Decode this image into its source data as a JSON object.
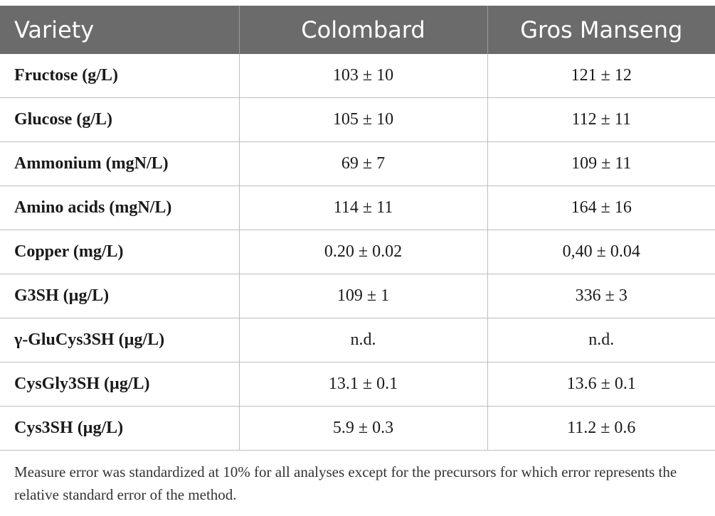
{
  "table": {
    "headers": [
      "Variety",
      "Colombard",
      "Gros Manseng"
    ],
    "rows": [
      {
        "label": "Fructose (g/L)",
        "colombard": "103 ± 10",
        "gros_manseng": "121 ± 12"
      },
      {
        "label": "Glucose (g/L)",
        "colombard": "105 ± 10",
        "gros_manseng": "112 ± 11"
      },
      {
        "label": "Ammonium (mgN/L)",
        "colombard": "69 ± 7",
        "gros_manseng": "109 ± 11"
      },
      {
        "label": "Amino acids (mgN/L)",
        "colombard": "114 ± 11",
        "gros_manseng": "164 ± 16"
      },
      {
        "label": "Copper (mg/L)",
        "colombard": "0.20 ± 0.02",
        "gros_manseng": "0,40 ± 0.04"
      },
      {
        "label": "G3SH (µg/L)",
        "colombard": "109 ± 1",
        "gros_manseng": "336 ± 3"
      },
      {
        "label": "γ-GluCys3SH (µg/L)",
        "colombard": "n.d.",
        "gros_manseng": "n.d."
      },
      {
        "label": "CysGly3SH (µg/L)",
        "colombard": "13.1 ± 0.1",
        "gros_manseng": "13.6 ± 0.1"
      },
      {
        "label": "Cys3SH (µg/L)",
        "colombard": "5.9 ± 0.3",
        "gros_manseng": "11.2 ± 0.6"
      }
    ]
  },
  "footnote": "Measure error was standardized at 10% for all analyses except for the precursors for which error represents the relative standard error of the method."
}
